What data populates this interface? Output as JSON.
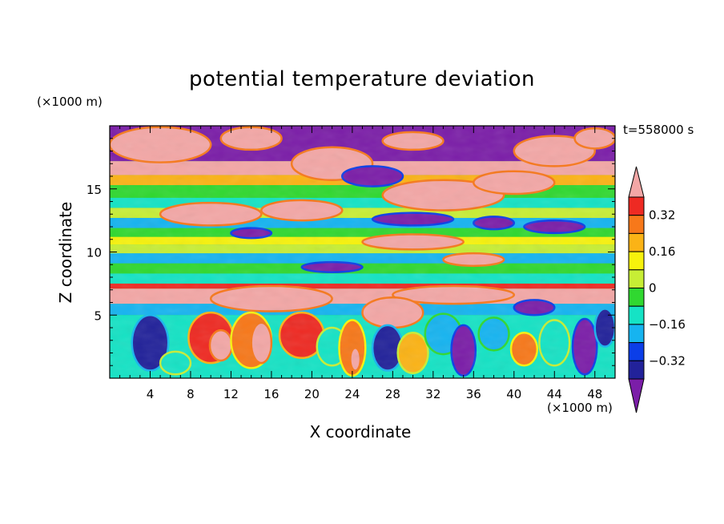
{
  "chart_data": {
    "type": "heatmap",
    "title": "potential temperature deviation",
    "xlabel": "X coordinate",
    "ylabel": "Z coordinate",
    "x_unit": "(×1000 m)",
    "z_unit": "(×1000 m)",
    "time_label": "t=558000 s",
    "xlim": [
      0,
      50
    ],
    "ylim": [
      0,
      20
    ],
    "xticks": [
      4,
      8,
      12,
      16,
      20,
      24,
      28,
      32,
      36,
      40,
      44,
      48
    ],
    "yticks": [
      5,
      10,
      15
    ],
    "colorbar": {
      "levels": [
        -0.4,
        -0.32,
        -0.24,
        -0.16,
        -0.08,
        0,
        0.08,
        0.16,
        0.24,
        0.32,
        0.4
      ],
      "labels": [
        "0.32",
        "0.16",
        "0",
        "−0.16",
        "−0.32"
      ],
      "label_values": [
        0.32,
        0.16,
        0,
        -0.16,
        -0.32
      ],
      "colors": [
        "#7b1ea8",
        "#22229a",
        "#0b3ee8",
        "#16b4f0",
        "#15e3c5",
        "#30d830",
        "#c7ee35",
        "#f7f20c",
        "#fbb316",
        "#f7781a",
        "#ee2a23",
        "#f3a7a6"
      ],
      "extend": "both"
    }
  }
}
